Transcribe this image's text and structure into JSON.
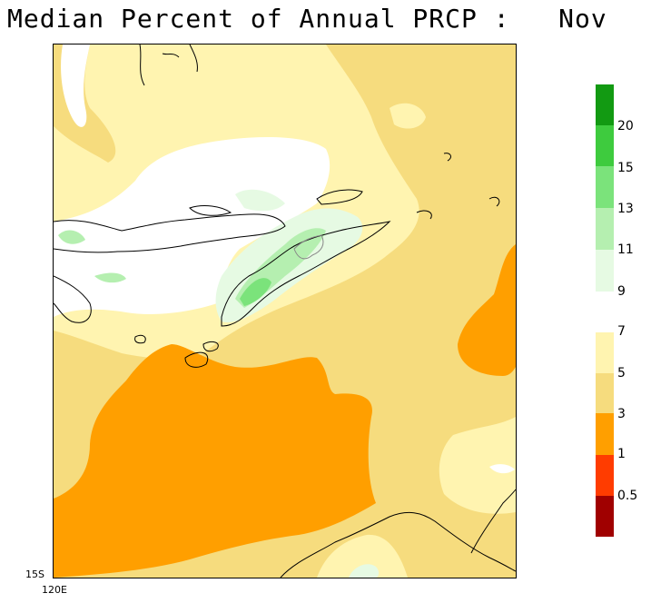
{
  "title": "Median Percent of Annual PRCP :   Nov",
  "axes": {
    "lat_label": "15S",
    "lon_label": "120E"
  },
  "legend": {
    "segments": [
      {
        "color": "#129a12"
      },
      {
        "color": "#3ecb3e"
      },
      {
        "color": "#7be37b"
      },
      {
        "color": "#b5efb0"
      },
      {
        "color": "#e6fae3"
      },
      {
        "color": "#ffffff"
      },
      {
        "color": "#fff4b0"
      },
      {
        "color": "#f6dc7e"
      },
      {
        "color": "#ff9f00"
      },
      {
        "color": "#ff3c00"
      },
      {
        "color": "#a00000"
      }
    ],
    "labels": [
      "20",
      "15",
      "13",
      "11",
      "9",
      "7",
      "5",
      "3",
      "1",
      "0.5"
    ]
  },
  "colors": {
    "land_outline": "#000000",
    "border": "#888888"
  }
}
